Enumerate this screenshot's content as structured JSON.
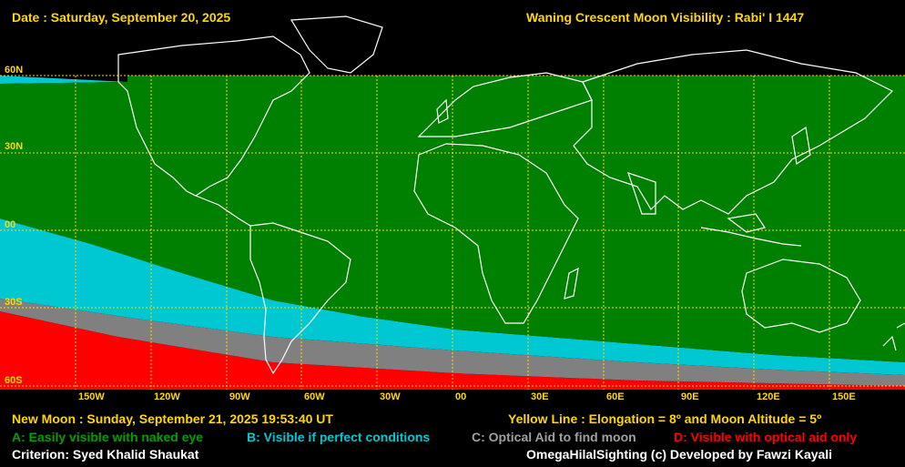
{
  "header": {
    "date": "Date : Saturday, September 20, 2025",
    "title": "Waning Crescent Moon Visibility : Rabi' I 1447"
  },
  "map": {
    "lat_labels": [
      "60N",
      "30N",
      "00",
      "30S",
      "60S"
    ],
    "lon_labels": [
      "150W",
      "120W",
      "90W",
      "60W",
      "30W",
      "00",
      "30E",
      "60E",
      "90E",
      "120E",
      "150E"
    ]
  },
  "footer": {
    "new_moon": "New Moon : Sunday, September 21, 2025  19:53:40  UT",
    "yellow_line": "Yellow Line : Elongation = 8º  and Moon Altitude = 5º",
    "legend_a": "A: Easily visible with naked eye",
    "legend_b": "B: Visible if perfect conditions",
    "legend_c": "C: Optical Aid to find moon",
    "legend_d": "D: Visible with optical aid only",
    "criterion": "Criterion: Syed Khalid Shaukat",
    "credit": "OmegaHilalSighting  (c)  Developed by Fawzi Kayali"
  },
  "colors": {
    "zone_a": "#008000",
    "zone_b": "#00c8d2",
    "zone_c": "#808080",
    "zone_d": "#ff0000",
    "grid": "#ffd700",
    "coast": "#ffffff"
  }
}
